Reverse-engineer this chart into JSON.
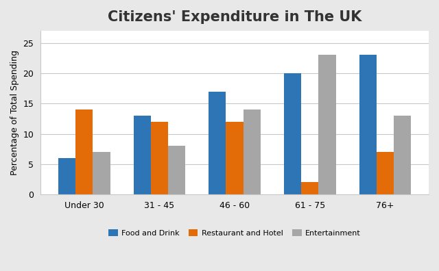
{
  "title": "Citizens' Expenditure in The UK",
  "ylabel": "Percentage of Total Spending",
  "categories": [
    "Under 30",
    "31 - 45",
    "46 - 60",
    "61 - 75",
    "76+"
  ],
  "series": [
    {
      "label": "Food and Drink",
      "color": "#2e75b6",
      "values": [
        6,
        13,
        17,
        20,
        23
      ]
    },
    {
      "label": "Restaurant and Hotel",
      "color": "#e36c09",
      "values": [
        14,
        12,
        12,
        2,
        7
      ]
    },
    {
      "label": "Entertainment",
      "color": "#a6a6a6",
      "values": [
        7,
        8,
        14,
        23,
        13
      ]
    }
  ],
  "ylim": [
    0,
    27
  ],
  "yticks": [
    0,
    5,
    10,
    15,
    20,
    25
  ],
  "outer_bg": "#e8e8e8",
  "inner_bg": "#ffffff",
  "grid_color": "#c8c8c8",
  "title_fontsize": 15,
  "axis_label_fontsize": 9,
  "tick_fontsize": 9,
  "legend_fontsize": 8,
  "bar_width": 0.23
}
